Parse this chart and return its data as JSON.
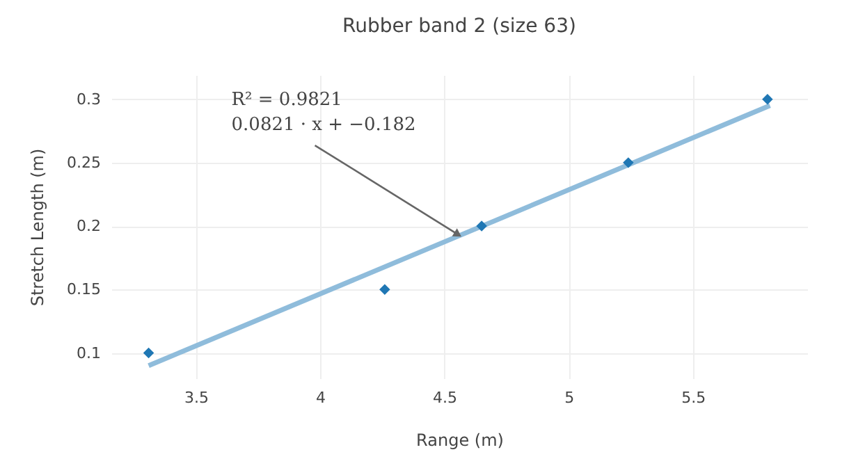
{
  "chart_data": {
    "type": "scatter",
    "title": "Rubber band 2 (size 63)",
    "xlabel": "Range (m)",
    "ylabel": "Stretch Length (m)",
    "xlim": [
      3.16,
      5.96
    ],
    "ylim": [
      0.08,
      0.319
    ],
    "xticks": [
      3.5,
      4,
      4.5,
      5,
      5.5
    ],
    "yticks": [
      0.1,
      0.15,
      0.2,
      0.25,
      0.3
    ],
    "grid": true,
    "series": [
      {
        "color": "#1f77b4",
        "marker": "diamond",
        "x": [
          3.31,
          4.26,
          4.65,
          5.24,
          5.8
        ],
        "values": [
          0.1,
          0.15,
          0.2,
          0.25,
          0.3
        ]
      },
      {
        "type": "line",
        "color": "#8fbcdb",
        "marker": "none",
        "line_style": "solid",
        "x": [
          3.31,
          5.81
        ],
        "values": [
          0.09,
          0.295
        ]
      }
    ],
    "annotations": [
      "R² = 0.9821",
      {
        "text": "0.0821 · x + −0.182",
        "x": 4.55,
        "y": 0.194
      }
    ]
  }
}
